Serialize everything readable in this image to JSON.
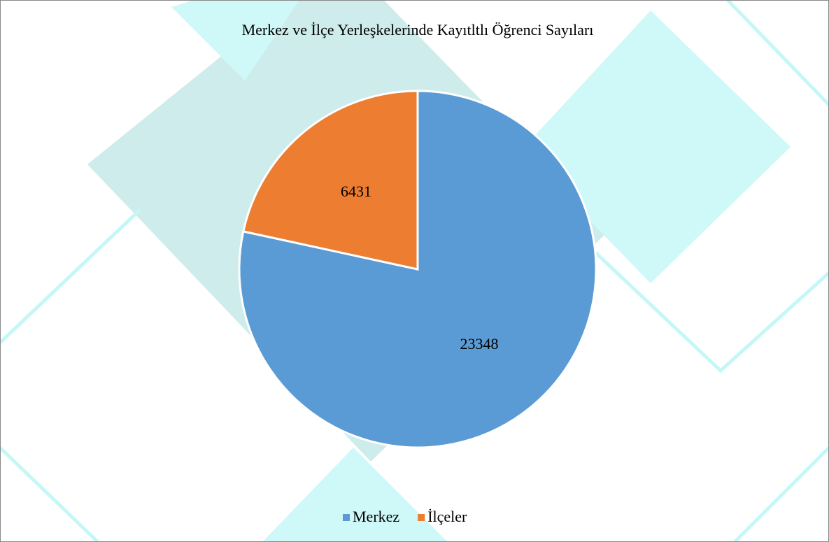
{
  "chart_data": {
    "type": "pie",
    "title": "Merkez ve İlçe Yerleşkelerinde Kayıtltlı Öğrenci Sayıları",
    "categories": [
      "Merkez",
      "İlçeler"
    ],
    "values": [
      23348,
      6431
    ],
    "colors": [
      "#5b9bd5",
      "#ed7d31"
    ],
    "legend": "bottom"
  }
}
